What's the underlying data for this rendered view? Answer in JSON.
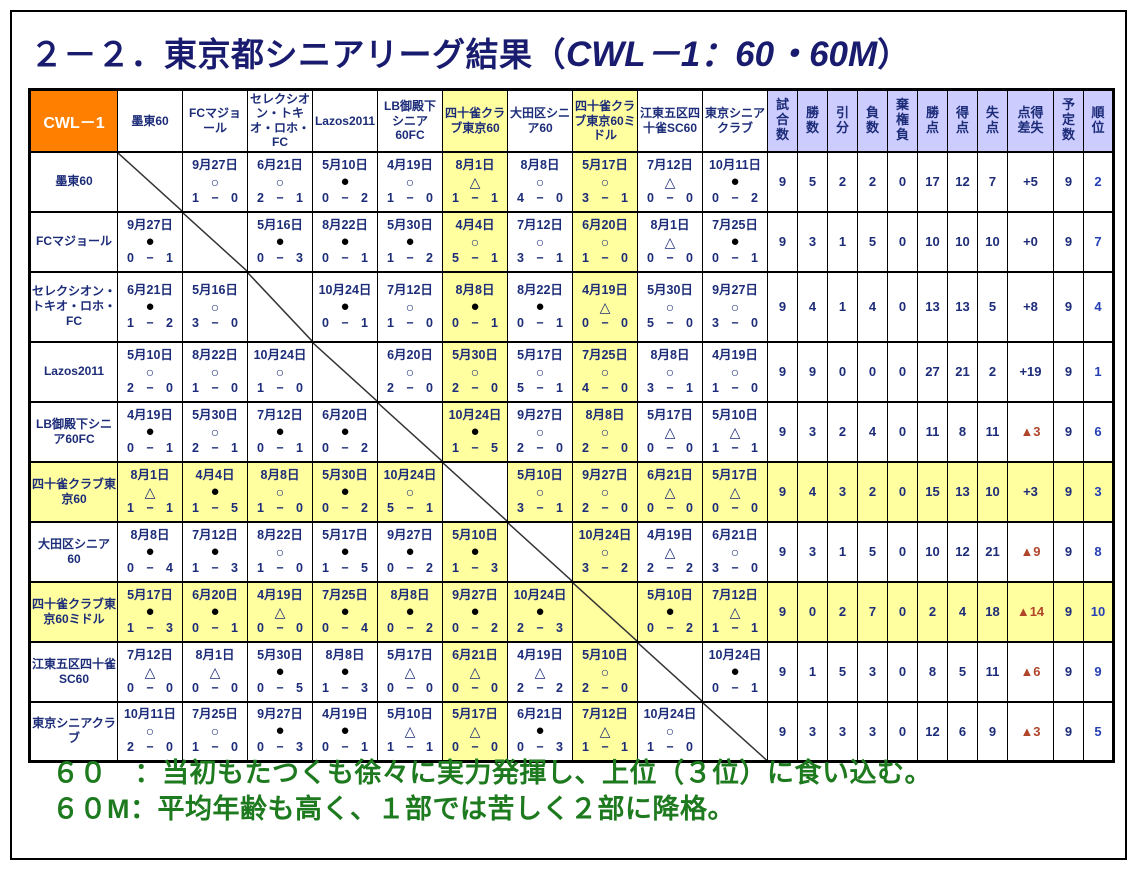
{
  "page": {
    "title_prefix": "２－２．東京都シニアリーグ結果（",
    "title_code": "CWL－1：60・60M",
    "title_suffix": "）"
  },
  "symbols": {
    "dash": "−",
    "win": "○",
    "lose": "●",
    "draw": "△"
  },
  "corner_label": "CWL－1",
  "teams": [
    "墨東60",
    "FCマジョール",
    "セレクシオン・トキオ・ロホ・FC",
    "Lazos2011",
    "LB御殿下シニア60FC",
    "四十雀クラブ東京60",
    "大田区シニア60",
    "四十雀クラブ東京60ミドル",
    "江東五区四十雀SC60",
    "東京シニアクラブ"
  ],
  "stat_headers": [
    "試\n合\n数",
    "勝\n数",
    "引\n分",
    "負\n数",
    "棄\n権\n負",
    "勝\n点",
    "得\n点",
    "失\n点",
    "点得\n差失",
    "予\n定\n数",
    "順\n位"
  ],
  "rows": [
    {
      "team": "墨東60",
      "cells": [
        null,
        {
          "date": "9月27日",
          "symbol": "○",
          "left": "1",
          "right": "0"
        },
        {
          "date": "6月21日",
          "symbol": "○",
          "left": "2",
          "right": "1"
        },
        {
          "date": "5月10日",
          "symbol": "●",
          "left": "0",
          "right": "2"
        },
        {
          "date": "4月19日",
          "symbol": "○",
          "left": "1",
          "right": "0"
        },
        {
          "date": "8月1日",
          "symbol": "△",
          "left": "1",
          "right": "1"
        },
        {
          "date": "8月8日",
          "symbol": "○",
          "left": "4",
          "right": "0"
        },
        {
          "date": "5月17日",
          "symbol": "○",
          "left": "3",
          "right": "1"
        },
        {
          "date": "7月12日",
          "symbol": "△",
          "left": "0",
          "right": "0"
        },
        {
          "date": "10月11日",
          "symbol": "●",
          "left": "0",
          "right": "2"
        }
      ],
      "stats": [
        "9",
        "5",
        "2",
        "2",
        "0",
        "17",
        "12",
        "7",
        "+5",
        "9",
        "2"
      ]
    },
    {
      "team": "FCマジョール",
      "cells": [
        {
          "date": "9月27日",
          "symbol": "●",
          "left": "0",
          "right": "1"
        },
        null,
        {
          "date": "5月16日",
          "symbol": "●",
          "left": "0",
          "right": "3"
        },
        {
          "date": "8月22日",
          "symbol": "●",
          "left": "0",
          "right": "1"
        },
        {
          "date": "5月30日",
          "symbol": "●",
          "left": "1",
          "right": "2"
        },
        {
          "date": "4月4日",
          "symbol": "○",
          "left": "5",
          "right": "1"
        },
        {
          "date": "7月12日",
          "symbol": "○",
          "left": "3",
          "right": "1"
        },
        {
          "date": "6月20日",
          "symbol": "○",
          "left": "1",
          "right": "0"
        },
        {
          "date": "8月1日",
          "symbol": "△",
          "left": "0",
          "right": "0"
        },
        {
          "date": "7月25日",
          "symbol": "●",
          "left": "0",
          "right": "1"
        }
      ],
      "stats": [
        "9",
        "3",
        "1",
        "5",
        "0",
        "10",
        "10",
        "10",
        "+0",
        "9",
        "7"
      ]
    },
    {
      "team": "セレクシオン・トキオ・ロホ・FC",
      "cells": [
        {
          "date": "6月21日",
          "symbol": "●",
          "left": "1",
          "right": "2"
        },
        {
          "date": "5月16日",
          "symbol": "○",
          "left": "3",
          "right": "0"
        },
        null,
        {
          "date": "10月24日",
          "symbol": "●",
          "left": "0",
          "right": "1"
        },
        {
          "date": "7月12日",
          "symbol": "○",
          "left": "1",
          "right": "0"
        },
        {
          "date": "8月8日",
          "symbol": "●",
          "left": "0",
          "right": "1"
        },
        {
          "date": "8月22日",
          "symbol": "●",
          "left": "0",
          "right": "1"
        },
        {
          "date": "4月19日",
          "symbol": "△",
          "left": "0",
          "right": "0"
        },
        {
          "date": "5月30日",
          "symbol": "○",
          "left": "5",
          "right": "0"
        },
        {
          "date": "9月27日",
          "symbol": "○",
          "left": "3",
          "right": "0"
        }
      ],
      "stats": [
        "9",
        "4",
        "1",
        "4",
        "0",
        "13",
        "13",
        "5",
        "+8",
        "9",
        "4"
      ]
    },
    {
      "team": "Lazos2011",
      "cells": [
        {
          "date": "5月10日",
          "symbol": "○",
          "left": "2",
          "right": "0"
        },
        {
          "date": "8月22日",
          "symbol": "○",
          "left": "1",
          "right": "0"
        },
        {
          "date": "10月24日",
          "symbol": "○",
          "left": "1",
          "right": "0"
        },
        null,
        {
          "date": "6月20日",
          "symbol": "○",
          "left": "2",
          "right": "0"
        },
        {
          "date": "5月30日",
          "symbol": "○",
          "left": "2",
          "right": "0"
        },
        {
          "date": "5月17日",
          "symbol": "○",
          "left": "5",
          "right": "1"
        },
        {
          "date": "7月25日",
          "symbol": "○",
          "left": "4",
          "right": "0"
        },
        {
          "date": "8月8日",
          "symbol": "○",
          "left": "3",
          "right": "1"
        },
        {
          "date": "4月19日",
          "symbol": "○",
          "left": "1",
          "right": "0"
        }
      ],
      "stats": [
        "9",
        "9",
        "0",
        "0",
        "0",
        "27",
        "21",
        "2",
        "+19",
        "9",
        "1"
      ]
    },
    {
      "team": "LB御殿下シニア60FC",
      "cells": [
        {
          "date": "4月19日",
          "symbol": "●",
          "left": "0",
          "right": "1"
        },
        {
          "date": "5月30日",
          "symbol": "○",
          "left": "2",
          "right": "1"
        },
        {
          "date": "7月12日",
          "symbol": "●",
          "left": "0",
          "right": "1"
        },
        {
          "date": "6月20日",
          "symbol": "●",
          "left": "0",
          "right": "2"
        },
        null,
        {
          "date": "10月24日",
          "symbol": "●",
          "left": "1",
          "right": "5"
        },
        {
          "date": "9月27日",
          "symbol": "○",
          "left": "2",
          "right": "0"
        },
        {
          "date": "8月8日",
          "symbol": "○",
          "left": "2",
          "right": "0"
        },
        {
          "date": "5月17日",
          "symbol": "△",
          "left": "0",
          "right": "0"
        },
        {
          "date": "5月10日",
          "symbol": "△",
          "left": "1",
          "right": "1"
        }
      ],
      "stats": [
        "9",
        "3",
        "2",
        "4",
        "0",
        "11",
        "8",
        "11",
        "▲3",
        "9",
        "6"
      ]
    },
    {
      "team": "四十雀クラブ東京60",
      "cells": [
        {
          "date": "8月1日",
          "symbol": "△",
          "left": "1",
          "right": "1"
        },
        {
          "date": "4月4日",
          "symbol": "●",
          "left": "1",
          "right": "5"
        },
        {
          "date": "8月8日",
          "symbol": "○",
          "left": "1",
          "right": "0"
        },
        {
          "date": "5月30日",
          "symbol": "●",
          "left": "0",
          "right": "2"
        },
        {
          "date": "10月24日",
          "symbol": "○",
          "left": "5",
          "right": "1"
        },
        null,
        {
          "date": "5月10日",
          "symbol": "○",
          "left": "3",
          "right": "1"
        },
        {
          "date": "9月27日",
          "symbol": "○",
          "left": "2",
          "right": "0"
        },
        {
          "date": "6月21日",
          "symbol": "△",
          "left": "0",
          "right": "0"
        },
        {
          "date": "5月17日",
          "symbol": "△",
          "left": "0",
          "right": "0"
        }
      ],
      "stats": [
        "9",
        "4",
        "3",
        "2",
        "0",
        "15",
        "13",
        "10",
        "+3",
        "9",
        "3"
      ]
    },
    {
      "team": "大田区シニア60",
      "cells": [
        {
          "date": "8月8日",
          "symbol": "●",
          "left": "0",
          "right": "4"
        },
        {
          "date": "7月12日",
          "symbol": "●",
          "left": "1",
          "right": "3"
        },
        {
          "date": "8月22日",
          "symbol": "○",
          "left": "1",
          "right": "0"
        },
        {
          "date": "5月17日",
          "symbol": "●",
          "left": "1",
          "right": "5"
        },
        {
          "date": "9月27日",
          "symbol": "●",
          "left": "0",
          "right": "2"
        },
        {
          "date": "5月10日",
          "symbol": "●",
          "left": "1",
          "right": "3"
        },
        null,
        {
          "date": "10月24日",
          "symbol": "○",
          "left": "3",
          "right": "2"
        },
        {
          "date": "4月19日",
          "symbol": "△",
          "left": "2",
          "right": "2"
        },
        {
          "date": "6月21日",
          "symbol": "○",
          "left": "3",
          "right": "0"
        }
      ],
      "stats": [
        "9",
        "3",
        "1",
        "5",
        "0",
        "10",
        "12",
        "21",
        "▲9",
        "9",
        "8"
      ]
    },
    {
      "team": "四十雀クラブ東京60ミドル",
      "cells": [
        {
          "date": "5月17日",
          "symbol": "●",
          "left": "1",
          "right": "3"
        },
        {
          "date": "6月20日",
          "symbol": "●",
          "left": "0",
          "right": "1"
        },
        {
          "date": "4月19日",
          "symbol": "△",
          "left": "0",
          "right": "0"
        },
        {
          "date": "7月25日",
          "symbol": "●",
          "left": "0",
          "right": "4"
        },
        {
          "date": "8月8日",
          "symbol": "●",
          "left": "0",
          "right": "2"
        },
        {
          "date": "9月27日",
          "symbol": "●",
          "left": "0",
          "right": "2"
        },
        {
          "date": "10月24日",
          "symbol": "●",
          "left": "2",
          "right": "3"
        },
        null,
        {
          "date": "5月10日",
          "symbol": "●",
          "left": "0",
          "right": "2"
        },
        {
          "date": "7月12日",
          "symbol": "△",
          "left": "1",
          "right": "1"
        }
      ],
      "stats": [
        "9",
        "0",
        "2",
        "7",
        "0",
        "2",
        "4",
        "18",
        "▲14",
        "9",
        "10"
      ]
    },
    {
      "team": "江東五区四十雀SC60",
      "cells": [
        {
          "date": "7月12日",
          "symbol": "△",
          "left": "0",
          "right": "0"
        },
        {
          "date": "8月1日",
          "symbol": "△",
          "left": "0",
          "right": "0"
        },
        {
          "date": "5月30日",
          "symbol": "●",
          "left": "0",
          "right": "5"
        },
        {
          "date": "8月8日",
          "symbol": "●",
          "left": "1",
          "right": "3"
        },
        {
          "date": "5月17日",
          "symbol": "△",
          "left": "0",
          "right": "0"
        },
        {
          "date": "6月21日",
          "symbol": "△",
          "left": "0",
          "right": "0"
        },
        {
          "date": "4月19日",
          "symbol": "△",
          "left": "2",
          "right": "2"
        },
        {
          "date": "5月10日",
          "symbol": "○",
          "left": "2",
          "right": "0"
        },
        null,
        {
          "date": "10月24日",
          "symbol": "●",
          "left": "0",
          "right": "1"
        }
      ],
      "stats": [
        "9",
        "1",
        "5",
        "3",
        "0",
        "8",
        "5",
        "11",
        "▲6",
        "9",
        "9"
      ]
    },
    {
      "team": "東京シニアクラブ",
      "cells": [
        {
          "date": "10月11日",
          "symbol": "○",
          "left": "2",
          "right": "0"
        },
        {
          "date": "7月25日",
          "symbol": "○",
          "left": "1",
          "right": "0"
        },
        {
          "date": "9月27日",
          "symbol": "●",
          "left": "0",
          "right": "3"
        },
        {
          "date": "4月19日",
          "symbol": "●",
          "left": "0",
          "right": "1"
        },
        {
          "date": "5月10日",
          "symbol": "△",
          "left": "1",
          "right": "1"
        },
        {
          "date": "5月17日",
          "symbol": "△",
          "left": "0",
          "right": "0"
        },
        {
          "date": "6月21日",
          "symbol": "●",
          "left": "0",
          "right": "3"
        },
        {
          "date": "7月12日",
          "symbol": "△",
          "left": "1",
          "right": "1"
        },
        {
          "date": "10月24日",
          "symbol": "○",
          "left": "1",
          "right": "0"
        },
        null
      ],
      "stats": [
        "9",
        "3",
        "3",
        "3",
        "0",
        "12",
        "6",
        "9",
        "▲3",
        "9",
        "5"
      ]
    }
  ],
  "footer": {
    "line1": "６０　：当初もたつくも徐々に実力発揮し、上位（３位）に食い込む。",
    "line2": "６０M：平均年齢も高く、１部では苦しく２部に降格。"
  },
  "colors": {
    "accent_orange": "#FF8000",
    "highlight_yellow": "#FFFF9F",
    "stat_header_lavender": "#CCCCFF",
    "text_navy": "#1C2C78",
    "negative_red": "#B0452A",
    "footer_green": "#1E7A1E"
  }
}
